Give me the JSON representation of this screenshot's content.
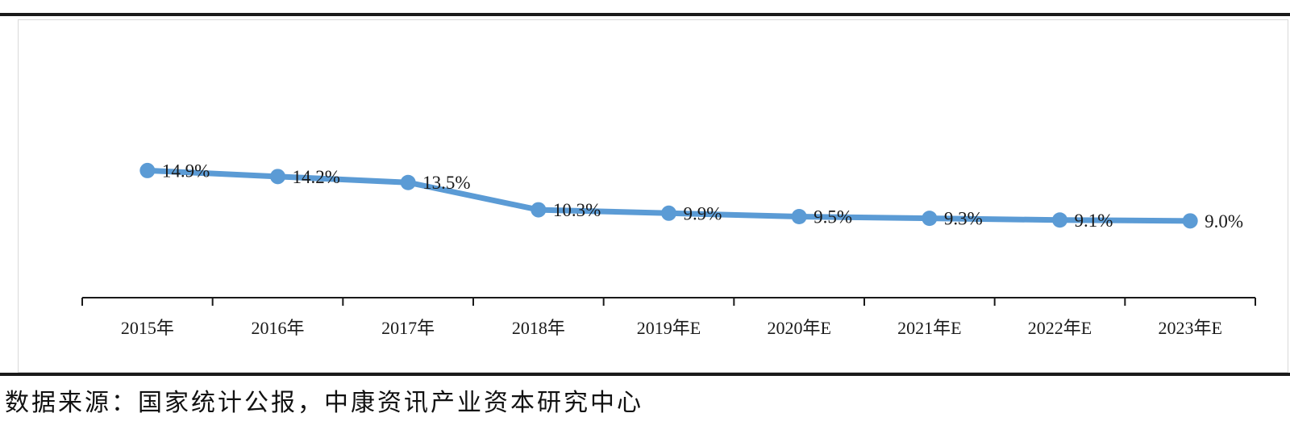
{
  "chart_data": {
    "type": "line",
    "categories": [
      "2015年",
      "2016年",
      "2017年",
      "2018年",
      "2019年E",
      "2020年E",
      "2021年E",
      "2022年E",
      "2023年E"
    ],
    "series": [
      {
        "values": [
          14.9,
          14.2,
          13.5,
          10.3,
          9.9,
          9.5,
          9.3,
          9.1,
          9.0
        ]
      }
    ],
    "data_labels": [
      "14.9%",
      "14.2%",
      "13.5%",
      "10.3%",
      "9.9%",
      "9.5%",
      "9.3%",
      "9.1%",
      "9.0%"
    ],
    "title": "",
    "xlabel": "",
    "ylabel": "",
    "ylim": [
      0,
      25
    ],
    "grid": false,
    "legend": "none",
    "line_color": "#5b9bd5"
  },
  "footer": {
    "source": "数据来源：国家统计公报，中康资讯产业资本研究中心"
  }
}
